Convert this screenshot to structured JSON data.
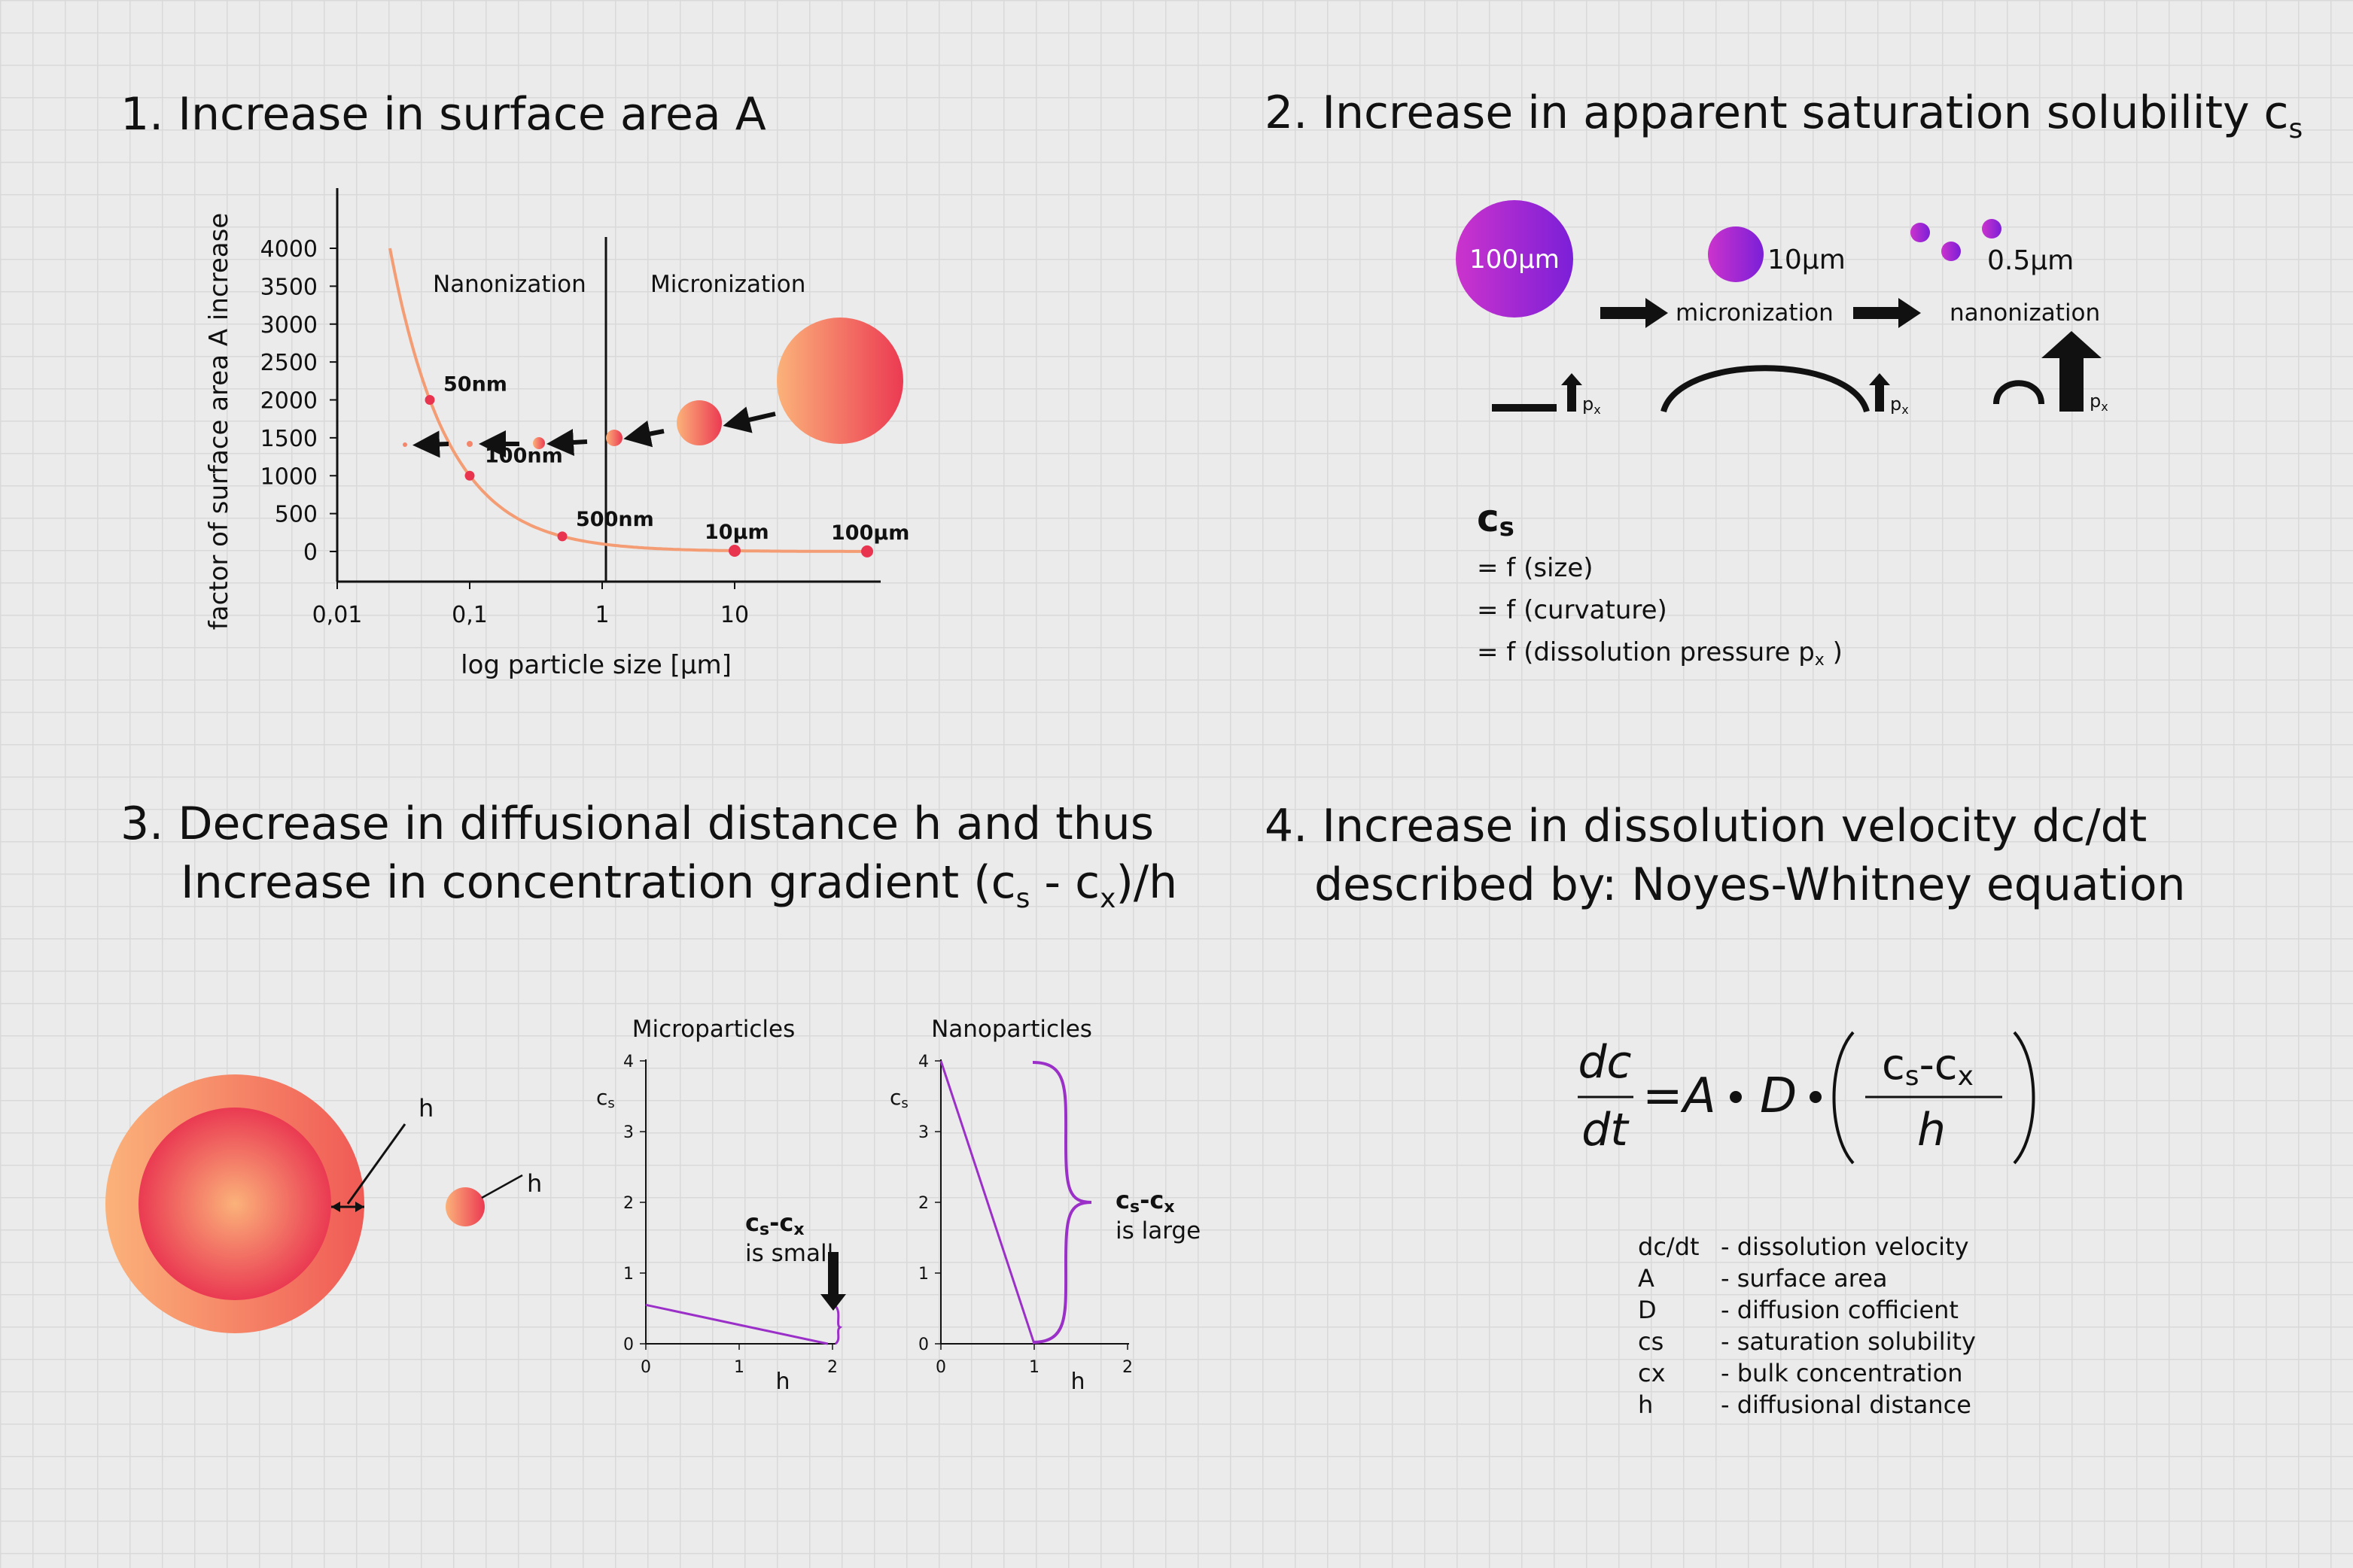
{
  "titles": {
    "s1": "1. Increase in surface area A",
    "s2": "2. Increase in apparent saturation solubility c",
    "s2_sub": "s",
    "s3_line1": "3. Decrease in diffusional distance h and thus",
    "s3_line2": "Increase in concentration gradient (c",
    "s3_sub1": "s",
    "s3_mid": " - c",
    "s3_sub2": "x",
    "s3_end": ")/h",
    "s4_line1": "4. Increase in dissolution velocity dc/dt",
    "s4_line2": "described by: Noyes-Whitney equation"
  },
  "chart_data": {
    "type": "line",
    "title": "",
    "xlabel": "log particle size [µm]",
    "ylabel": "factor of surface area A increase",
    "x_ticks": [
      "0,01",
      "0,1",
      "1",
      "10"
    ],
    "y_ticks": [
      "0",
      "500",
      "1000",
      "1500",
      "2000",
      "2500",
      "3000",
      "3500",
      "4000"
    ],
    "xscale": "log",
    "ylim": [
      0,
      4000
    ],
    "regions": [
      "Nanonization",
      "Micronization"
    ],
    "points": [
      {
        "x": 0.05,
        "y": 2000,
        "label": "50nm"
      },
      {
        "x": 0.1,
        "y": 1000,
        "label": "100nm"
      },
      {
        "x": 0.5,
        "y": 200,
        "label": "500nm"
      },
      {
        "x": 10,
        "y": 10,
        "label": "10µm"
      },
      {
        "x": 100,
        "y": 1,
        "label": "100µm"
      }
    ]
  },
  "section2": {
    "sizes": [
      "100µm",
      "10µm",
      "0.5µm"
    ],
    "micronization": "micronization",
    "nanonization": "nanonization",
    "px": "p",
    "px_sub": "x",
    "cs_label": "c",
    "cs_sub": "s",
    "lines": [
      "= f (size)",
      "= f (curvature)",
      "= f (dissolution pressure p"
    ],
    "line3_sub": "x",
    "line3_end": " )"
  },
  "section3": {
    "h": "h",
    "micro_title": "Microparticles",
    "nano_title": "Nanoparticles",
    "y_label": "c",
    "y_label_sub": "s",
    "x_label": "h",
    "y_ticks": [
      "0",
      "1",
      "2",
      "3",
      "4"
    ],
    "x_ticks": [
      "0",
      "1",
      "2"
    ],
    "diff_label": "c",
    "diff_sub1": "s",
    "diff_mid": "-c",
    "diff_sub2": "x",
    "small": "is small",
    "large": "is large"
  },
  "section4": {
    "dc": "dc",
    "dt": "dt",
    "rhs_A": "A",
    "rhs_D": "D",
    "frac_num_c1": "c",
    "frac_num_s": "s",
    "frac_num_mid": "-c",
    "frac_num_x": "x",
    "frac_den": "h",
    "legend": [
      {
        "sym": "dc/dt",
        "desc": "- dissolution velocity"
      },
      {
        "sym": "A",
        "desc": "- surface area"
      },
      {
        "sym": "D",
        "desc": "- diffusion cofficient"
      },
      {
        "sym": "cs",
        "desc": "- saturation solubility"
      },
      {
        "sym": "cx",
        "desc": "- bulk concentration"
      },
      {
        "sym": "h",
        "desc": "- diffusional distance"
      }
    ]
  },
  "colors": {
    "orange_light": "#fbb27a",
    "red": "#e8344e",
    "purple_light": "#cc33cc",
    "purple_dark": "#7b1fd8",
    "curve": "#f49c74"
  }
}
